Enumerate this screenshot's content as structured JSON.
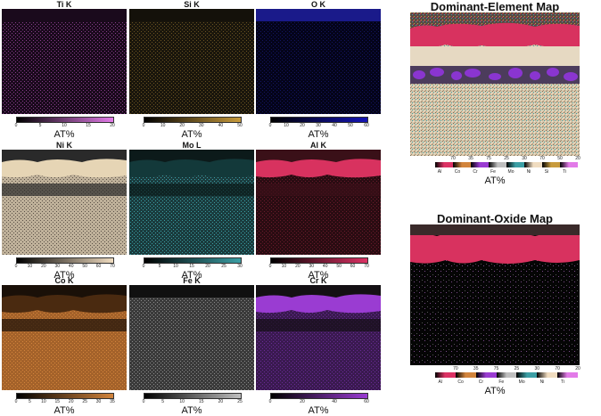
{
  "panels": [
    {
      "title": "Ti K",
      "ticks": [
        "0",
        "5",
        "10",
        "15",
        "20"
      ],
      "cmap": [
        "#000000",
        "#e27be8"
      ],
      "unit": "AT%"
    },
    {
      "title": "Si K",
      "ticks": [
        "0",
        "10",
        "20",
        "30",
        "40",
        "50"
      ],
      "cmap": [
        "#000000",
        "#c89b3c"
      ],
      "unit": "AT%"
    },
    {
      "title": "O K",
      "ticks": [
        "0",
        "10",
        "20",
        "30",
        "40",
        "50",
        "60"
      ],
      "cmap": [
        "#000000",
        "#1414b4"
      ],
      "unit": "AT%"
    },
    {
      "title": "Ni K",
      "ticks": [
        "0",
        "10",
        "20",
        "30",
        "40",
        "50",
        "60",
        "70"
      ],
      "cmap": [
        "#000000",
        "#f0dcc0"
      ],
      "unit": "AT%"
    },
    {
      "title": "Mo L",
      "ticks": [
        "0",
        "5",
        "10",
        "15",
        "20",
        "25",
        "30"
      ],
      "cmap": [
        "#000000",
        "#3c9fa5"
      ],
      "unit": "AT%"
    },
    {
      "title": "Al K",
      "ticks": [
        "0",
        "10",
        "20",
        "30",
        "40",
        "50",
        "60",
        "70"
      ],
      "cmap": [
        "#000000",
        "#dc3264"
      ],
      "unit": "AT%"
    },
    {
      "title": "Co K",
      "ticks": [
        "0",
        "5",
        "10",
        "15",
        "20",
        "25",
        "30",
        "35"
      ],
      "cmap": [
        "#000000",
        "#d2843c"
      ],
      "unit": "AT%"
    },
    {
      "title": "Fe K",
      "ticks": [
        "0",
        "5",
        "10",
        "15",
        "20",
        "25"
      ],
      "cmap": [
        "#000000",
        "#bfbfbf"
      ],
      "unit": "AT%"
    },
    {
      "title": "Cr K",
      "ticks": [
        "0",
        "20",
        "40",
        "60"
      ],
      "cmap": [
        "#000000",
        "#9a3cd2"
      ],
      "unit": "AT%"
    }
  ],
  "dominant_element": {
    "title": "Dominant-Element Map",
    "values": [
      "70",
      "35",
      "75",
      "25",
      "30",
      "70",
      "50",
      "20"
    ],
    "labels": [
      "Al",
      "Co",
      "Cr",
      "Fe",
      "Mo",
      "Ni",
      "Si",
      "Ti"
    ],
    "colors": [
      "#dc3264",
      "#d2843c",
      "#9a3cd2",
      "#bfbfbf",
      "#3c9fa5",
      "#f0dcc0",
      "#c89b3c",
      "#e27be8"
    ],
    "unit": "AT%"
  },
  "dominant_oxide": {
    "title": "Dominant-Oxide Map",
    "values": [
      "70",
      "35",
      "75",
      "25",
      "30",
      "70",
      "20"
    ],
    "labels": [
      "Al",
      "Co",
      "Cr",
      "Fe",
      "Mo",
      "Ni",
      "Ti"
    ],
    "colors": [
      "#dc3264",
      "#d2843c",
      "#9a3cd2",
      "#bfbfbf",
      "#3c9fa5",
      "#f0dcc0",
      "#e27be8"
    ],
    "unit": "AT%"
  }
}
